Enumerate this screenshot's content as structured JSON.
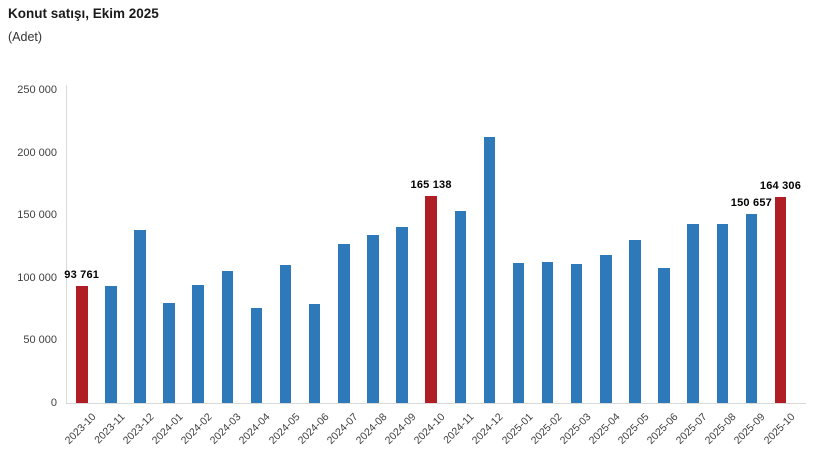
{
  "header": {
    "title": "Konut satışı, Ekim 2025",
    "unit": "(Adet)"
  },
  "chart_data": {
    "type": "bar",
    "title": "Konut satışı, Ekim 2025",
    "xlabel": "",
    "ylabel": "Adet",
    "ylim": [
      0,
      250000
    ],
    "grid": false,
    "legend": false,
    "ytick_values": [
      0,
      50000,
      100000,
      150000,
      200000,
      250000
    ],
    "ytick_labels": [
      "0",
      "50 000",
      "100 000",
      "150 000",
      "200 000",
      "250 000"
    ],
    "categories": [
      "2023-10",
      "2023-11",
      "2023-12",
      "2024-01",
      "2024-02",
      "2024-03",
      "2024-04",
      "2024-05",
      "2024-06",
      "2024-07",
      "2024-08",
      "2024-09",
      "2024-10",
      "2024-11",
      "2024-12",
      "2025-01",
      "2025-02",
      "2025-03",
      "2025-04",
      "2025-05",
      "2025-06",
      "2025-07",
      "2025-08",
      "2025-09",
      "2025-10"
    ],
    "values": [
      93761,
      93178,
      138577,
      80308,
      93902,
      105394,
      75569,
      110588,
      79313,
      127088,
      134155,
      140919,
      165138,
      153014,
      212637,
      112173,
      112818,
      110795,
      118359,
      130025,
      107723,
      142858,
      143319,
      150657,
      164306
    ],
    "highlight_indices": [
      0,
      12,
      24
    ],
    "data_labels": [
      {
        "index": 0,
        "text": "93 761"
      },
      {
        "index": 12,
        "text": "165 138"
      },
      {
        "index": 23,
        "text": "150 657"
      },
      {
        "index": 24,
        "text": "164 306"
      }
    ],
    "colors": {
      "bar": "#2E79B9",
      "highlight": "#AE1E24",
      "axis_line": "#D9D9D9",
      "tick_text": "#404040",
      "value_label_text": "#000000"
    }
  }
}
